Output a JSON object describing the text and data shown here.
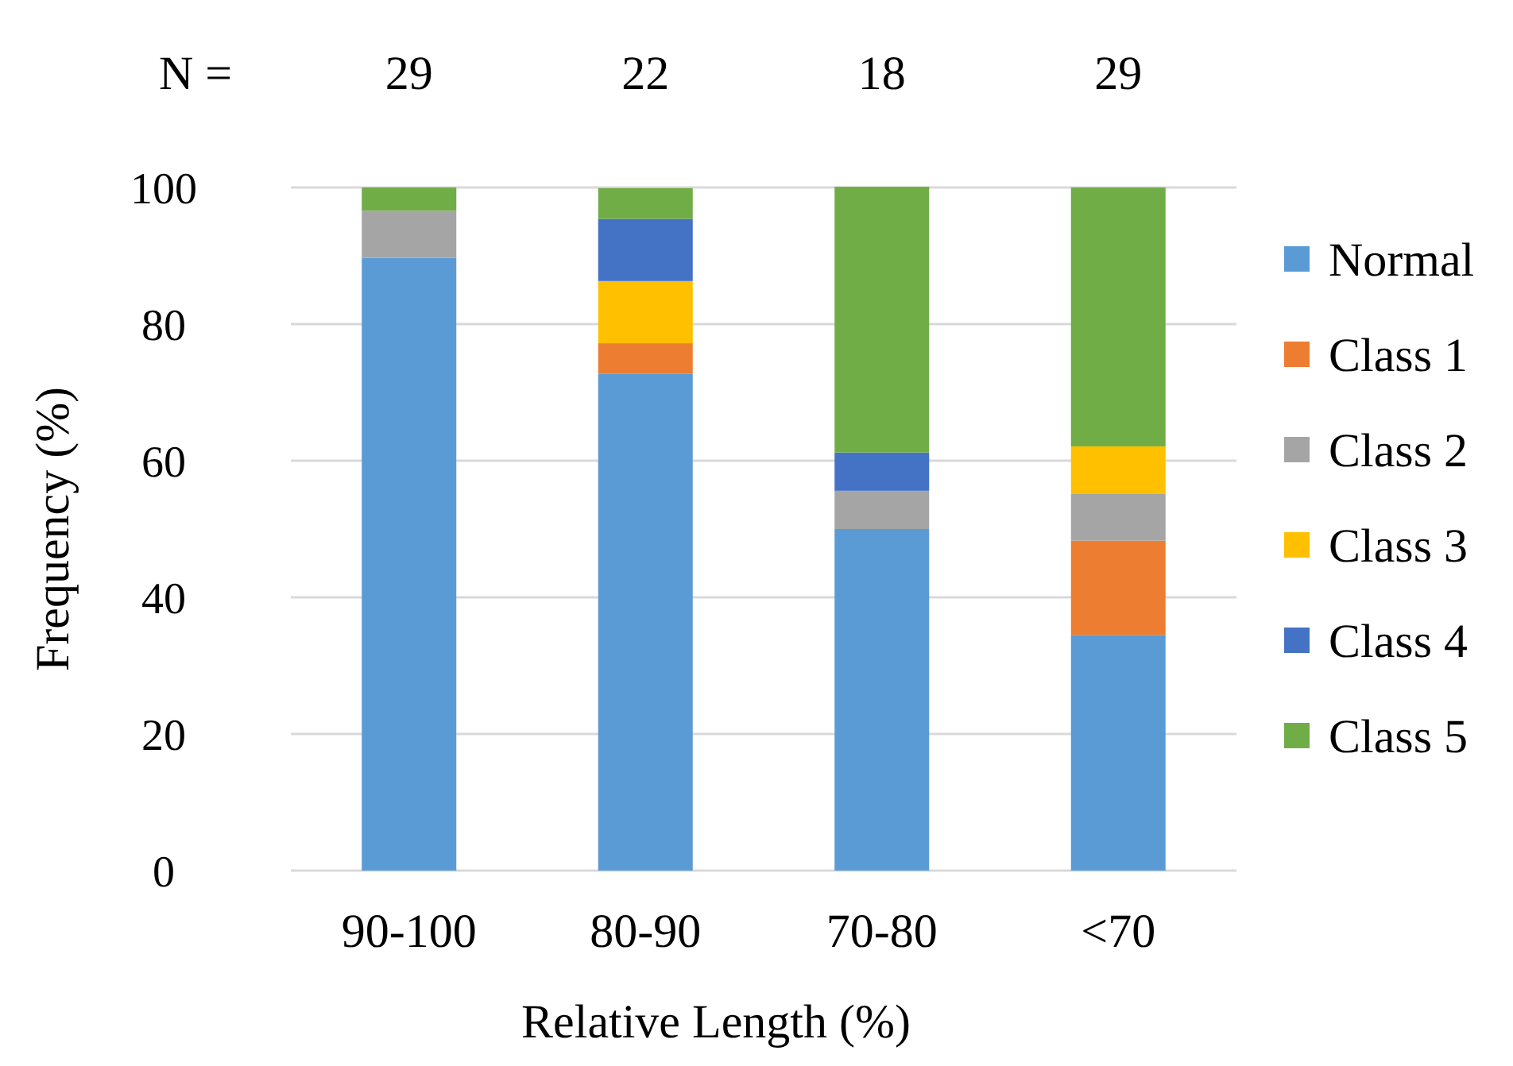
{
  "chart_data": {
    "type": "bar",
    "stacked": true,
    "xlabel": "Relative Length (%)",
    "ylabel": "Frequency (%)",
    "categories": [
      "90-100",
      "80-90",
      "70-80",
      "<70"
    ],
    "series": [
      {
        "name": "Normal",
        "color": "#5b9bd5",
        "values": [
          89.7,
          72.7,
          50.0,
          34.5
        ]
      },
      {
        "name": "Class 1",
        "color": "#ed7d31",
        "values": [
          0,
          4.5,
          0,
          13.8
        ]
      },
      {
        "name": "Class 2",
        "color": "#a5a5a5",
        "values": [
          6.9,
          0,
          5.6,
          6.9
        ]
      },
      {
        "name": "Class 3",
        "color": "#ffc000",
        "values": [
          0,
          9.1,
          0,
          6.9
        ]
      },
      {
        "name": "Class 4",
        "color": "#4472c4",
        "values": [
          0,
          9.1,
          5.6,
          0
        ]
      },
      {
        "name": "Class 5",
        "color": "#70ad47",
        "values": [
          3.4,
          4.5,
          38.9,
          37.9
        ]
      }
    ],
    "ylim": [
      0,
      100
    ],
    "yticks": [
      0,
      20,
      40,
      60,
      80,
      100
    ],
    "grid": "y",
    "legend": "right",
    "annotations": [
      "N =",
      "29",
      "22",
      "18",
      "29"
    ]
  }
}
